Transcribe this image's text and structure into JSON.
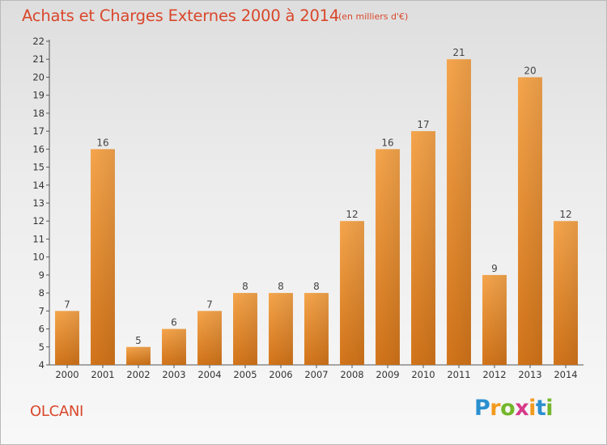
{
  "title": "Achats et Charges Externes 2000 à 2014",
  "unit": "(en milliers d'€)",
  "commune": "OLCANI",
  "brand": {
    "letters": [
      "P",
      "r",
      "o",
      "x",
      "i",
      "t",
      "i"
    ],
    "colors": [
      "#2a8fcf",
      "#f29a1e",
      "#73b72a",
      "#d63a8a",
      "#f29a1e",
      "#2a8fcf",
      "#73b72a"
    ]
  },
  "colors": {
    "bar_top": "#f5a54c",
    "bar_bottom": "#d2741a",
    "title": "#d9472b"
  },
  "chart_data": {
    "type": "bar",
    "title": "Achats et Charges Externes 2000 à 2014",
    "subtitle": "(en milliers d'€)",
    "xlabel": "",
    "ylabel": "",
    "categories": [
      "2000",
      "2001",
      "2002",
      "2003",
      "2004",
      "2005",
      "2006",
      "2007",
      "2008",
      "2009",
      "2010",
      "2011",
      "2012",
      "2013",
      "2014"
    ],
    "values": [
      7,
      16,
      5,
      6,
      7,
      8,
      8,
      8,
      12,
      16,
      17,
      21,
      9,
      20,
      12
    ],
    "ylim": [
      4,
      22
    ],
    "yticks": [
      4,
      5,
      6,
      7,
      8,
      9,
      10,
      11,
      12,
      13,
      14,
      15,
      16,
      17,
      18,
      19,
      20,
      21,
      22
    ],
    "grid": false,
    "legend": "none"
  }
}
